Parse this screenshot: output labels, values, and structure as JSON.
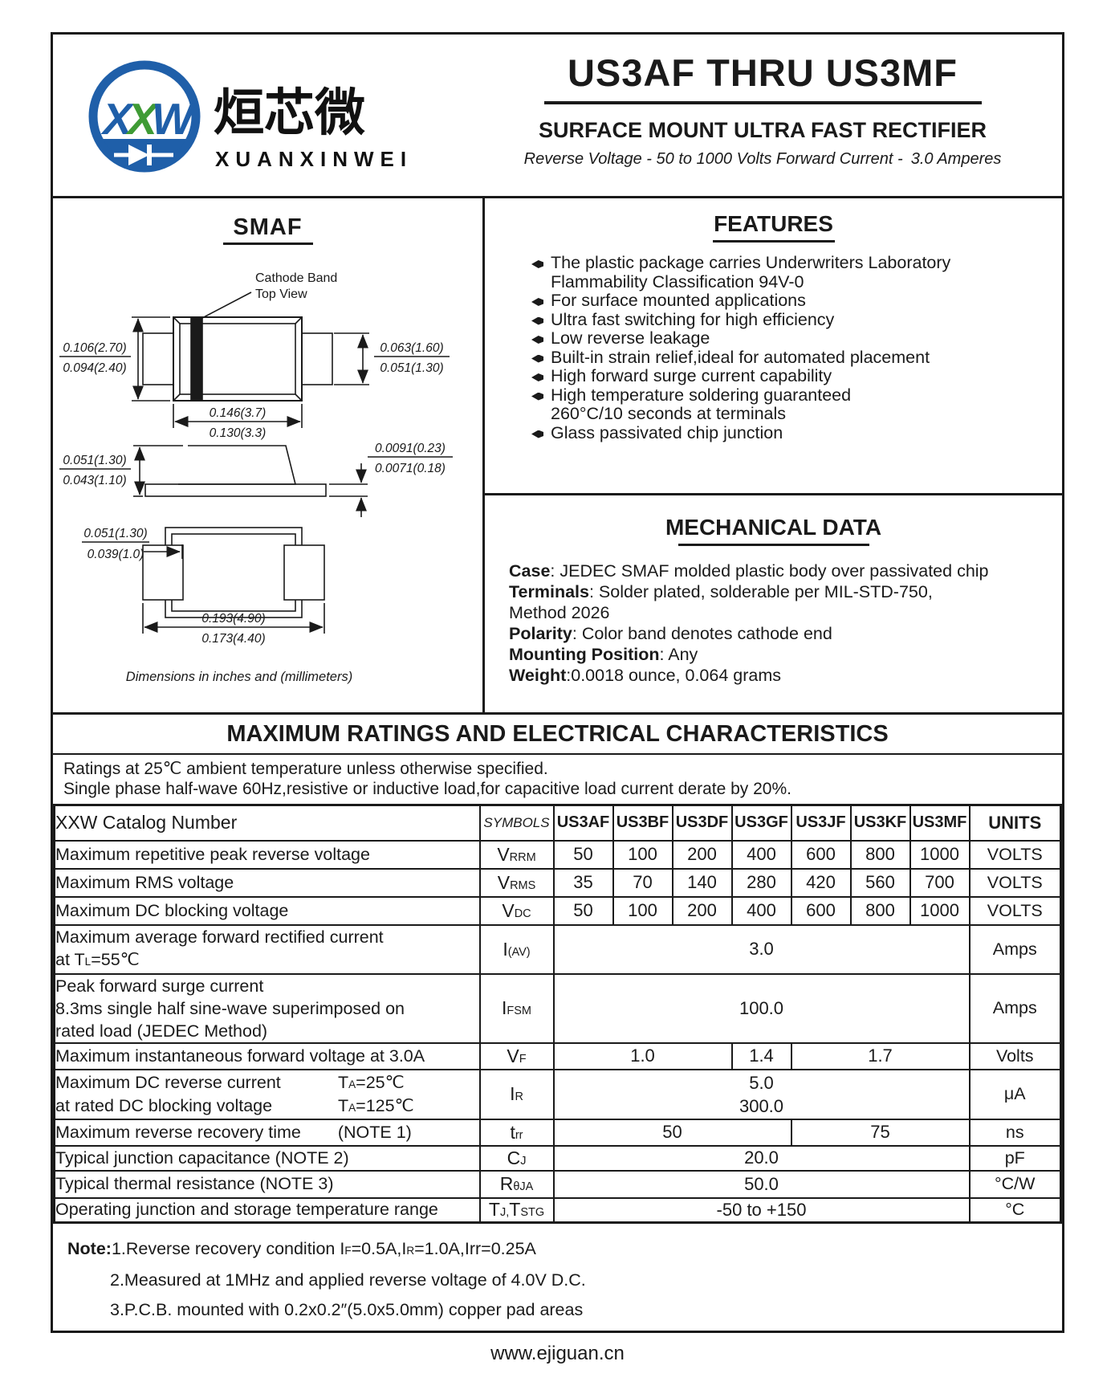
{
  "header": {
    "logo_x1": "X",
    "logo_x2": "X",
    "logo_w": "W",
    "logo_cn": "烜芯微",
    "logo_en": "XUANXINWEI",
    "title": "US3AF THRU US3MF",
    "subtitle": "SURFACE MOUNT ULTRA FAST RECTIFIER",
    "tagline": "Reverse Voltage - 50 to 1000 Volts  Forward Current -",
    "tagline_current": "3.0 Amperes"
  },
  "drawing": {
    "name": "SMAF",
    "callout_line1": "Cathode Band",
    "callout_line2": "Top View",
    "top": {
      "left_max": "0.106(2.70)",
      "left_min": "0.094(2.40)",
      "right_max": "0.063(1.60)",
      "right_min": "0.051(1.30)",
      "width_max": "0.146(3.7)",
      "width_min": "0.130(3.3)"
    },
    "side": {
      "left_max": "0.051(1.30)",
      "left_min": "0.043(1.10)",
      "right_max": "0.0091(0.23)",
      "right_min": "0.0071(0.18)"
    },
    "bottom": {
      "tab_max": "0.051(1.30)",
      "tab_min": "0.039(1.0)",
      "width_max": "0.193(4.90)",
      "width_min": "0.173(4.40)"
    },
    "caption": "Dimensions in inches and (millimeters)"
  },
  "features": {
    "title": "FEATURES",
    "items": [
      [
        "The plastic package carries Underwriters Laboratory",
        "Flammability Classification 94V-0"
      ],
      [
        "For surface mounted applications"
      ],
      [
        "Ultra fast switching for high efficiency"
      ],
      [
        "Low reverse leakage"
      ],
      [
        "Built-in strain relief,ideal for automated placement"
      ],
      [
        "High forward surge current capability"
      ],
      [
        "High temperature soldering guaranteed",
        "260°C/10 seconds at terminals"
      ],
      [
        "Glass passivated chip junction"
      ]
    ]
  },
  "mechanical": {
    "title": "MECHANICAL DATA",
    "rows": [
      {
        "label": "Case",
        "text": ": JEDEC SMAF molded plastic body over passivated chip"
      },
      {
        "label": "Terminals",
        "text": ": Solder plated, solderable per MIL-STD-750,"
      },
      {
        "label": "",
        "text": "Method 2026"
      },
      {
        "label": "Polarity",
        "text": ": Color band denotes cathode end"
      },
      {
        "label": "Mounting Position",
        "text": ": Any"
      },
      {
        "label": "Weight",
        "text": ":0.0018 ounce, 0.064 grams"
      }
    ]
  },
  "ratings": {
    "title": "MAXIMUM RATINGS AND ELECTRICAL CHARACTERISTICS",
    "line1": "Ratings at 25℃ ambient temperature unless otherwise specified.",
    "line2": "Single phase half-wave 60Hz,resistive or inductive load,for capacitive load current derate by 20%."
  },
  "table": {
    "header": {
      "catalog": "XXW Catalog Number",
      "symbols": "SYMBOLS",
      "parts": [
        "US3AF",
        "US3BF",
        "US3DF",
        "US3GF",
        "US3JF",
        "US3KF",
        "US3MF"
      ],
      "units": "UNITS"
    },
    "rows": [
      {
        "label": "Maximum repetitive peak reverse voltage",
        "symbol": [
          {
            "t": "V"
          },
          {
            "t": "RRM",
            "s": 1
          }
        ],
        "values": [
          "50",
          "100",
          "200",
          "400",
          "600",
          "800",
          "1000"
        ],
        "unit": "VOLTS"
      },
      {
        "label": "Maximum RMS voltage",
        "symbol": [
          {
            "t": "V"
          },
          {
            "t": "RMS",
            "s": 1
          }
        ],
        "values": [
          "35",
          "70",
          "140",
          "280",
          "420",
          "560",
          "700"
        ],
        "unit": "VOLTS"
      },
      {
        "label": "Maximum DC blocking voltage",
        "symbol": [
          {
            "t": "V"
          },
          {
            "t": "DC",
            "s": 1
          }
        ],
        "values": [
          "50",
          "100",
          "200",
          "400",
          "600",
          "800",
          "1000"
        ],
        "unit": "VOLTS"
      },
      {
        "label": "Maximum average forward rectified current",
        "label2": [
          {
            "t": "at T"
          },
          {
            "t": "L",
            "s": 1
          },
          {
            "t": "=55℃"
          }
        ],
        "symbol": [
          {
            "t": "I"
          },
          {
            "t": "(AV)",
            "s": 1
          }
        ],
        "value": "3.0",
        "unit": "Amps"
      },
      {
        "label_lines": [
          "Peak forward surge current",
          "8.3ms single half sine-wave superimposed on",
          "rated load (JEDEC Method)"
        ],
        "symbol": [
          {
            "t": "I"
          },
          {
            "t": "FSM",
            "s": 1
          }
        ],
        "value": "100.0",
        "unit": "Amps"
      },
      {
        "label": "Maximum instantaneous forward voltage at 3.0A",
        "symbol": [
          {
            "t": "V"
          },
          {
            "t": "F",
            "s": 1
          }
        ],
        "values": [
          "1.0",
          "1.4",
          "1.7"
        ],
        "unit": "Volts"
      },
      {
        "label": "Maximum DC reverse current",
        "cond1": [
          {
            "t": "T"
          },
          {
            "t": "A",
            "s": 1
          },
          {
            "t": "=25℃"
          }
        ],
        "label2": "at rated DC blocking voltage",
        "cond2": [
          {
            "t": "T"
          },
          {
            "t": "A",
            "s": 1
          },
          {
            "t": "=125℃"
          }
        ],
        "symbol": [
          {
            "t": "I"
          },
          {
            "t": "R",
            "s": 1
          }
        ],
        "values": [
          "5.0",
          "300.0"
        ],
        "unit": "μA"
      },
      {
        "label": "Maximum reverse recovery time",
        "note_ref": "(NOTE 1)",
        "symbol": [
          {
            "t": "t"
          },
          {
            "t": "rr",
            "s": 1
          }
        ],
        "values": [
          "50",
          "75"
        ],
        "unit": "ns"
      },
      {
        "label": "Typical junction capacitance (NOTE 2)",
        "symbol": [
          {
            "t": "C"
          },
          {
            "t": "J",
            "s": 1
          }
        ],
        "value": "20.0",
        "unit": "pF"
      },
      {
        "label": "Typical thermal resistance (NOTE 3)",
        "symbol": [
          {
            "t": "R"
          },
          {
            "t": "θJA",
            "s": 1
          }
        ],
        "value": "50.0",
        "unit": "°C/W"
      },
      {
        "label": "Operating junction and storage temperature range",
        "symbol": [
          {
            "t": "T"
          },
          {
            "t": "J,",
            "s": 1
          },
          {
            "t": "T"
          },
          {
            "t": "STG",
            "s": 1
          }
        ],
        "value": "-50 to +150",
        "unit": "°C"
      }
    ]
  },
  "notes": {
    "label": "Note:",
    "item1": [
      {
        "t": "1.Reverse recovery condition I"
      },
      {
        "t": "F",
        "s": 1
      },
      {
        "t": "=0.5A,I"
      },
      {
        "t": "R",
        "s": 1
      },
      {
        "t": "=1.0A,Irr=0.25A"
      }
    ],
    "item2": "2.Measured at 1MHz and applied reverse voltage of 4.0V D.C.",
    "item3": "3.P.C.B. mounted with 0.2x0.2″(5.0x5.0mm) copper pad areas"
  },
  "footer": {
    "url": "www.ejiguan.cn"
  }
}
